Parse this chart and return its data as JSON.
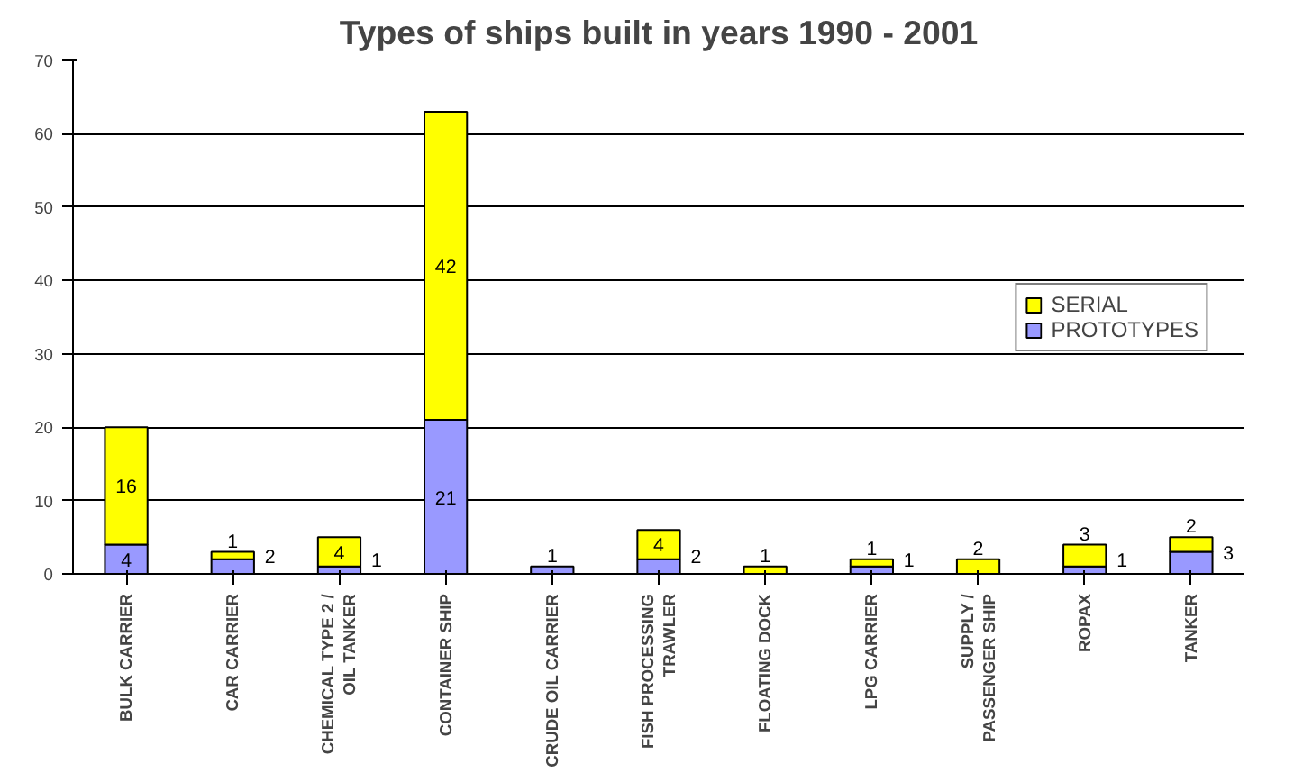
{
  "chart_data": {
    "type": "bar",
    "title": "Types of ships built in years 1990 - 2001",
    "stacked": true,
    "categories": [
      "BULK CARRIER",
      "CAR CARRIER",
      "CHEMICAL TYPE 2 /\nOIL TANKER",
      "CONTAINER SHIP",
      "CRUDE OIL CARRIER",
      "FISH PROCESSING\nTRAWLER",
      "FLOATING DOCK",
      "LPG CARRIER",
      "SUPPLY /\nPASSENGER SHIP",
      "ROPAX",
      "TANKER"
    ],
    "series": [
      {
        "name": "PROTOTYPES",
        "color": "#9999ff",
        "values": [
          4,
          2,
          1,
          21,
          1,
          2,
          0,
          1,
          0,
          1,
          3
        ],
        "value_labels": [
          "4",
          "2",
          "1",
          "21",
          "1",
          "2",
          null,
          "1",
          null,
          "1",
          "3"
        ]
      },
      {
        "name": "SERIAL",
        "color": "#ffff00",
        "values": [
          16,
          1,
          4,
          42,
          0,
          4,
          1,
          1,
          2,
          3,
          2
        ],
        "value_labels": [
          "16",
          "1",
          "4",
          "42",
          null,
          "4",
          "1",
          "1",
          "2",
          "3",
          "2"
        ]
      }
    ],
    "ylim": [
      0,
      70
    ],
    "yticks": [
      0,
      10,
      20,
      30,
      40,
      50,
      60,
      70
    ],
    "grid": "y",
    "legend": "right"
  }
}
